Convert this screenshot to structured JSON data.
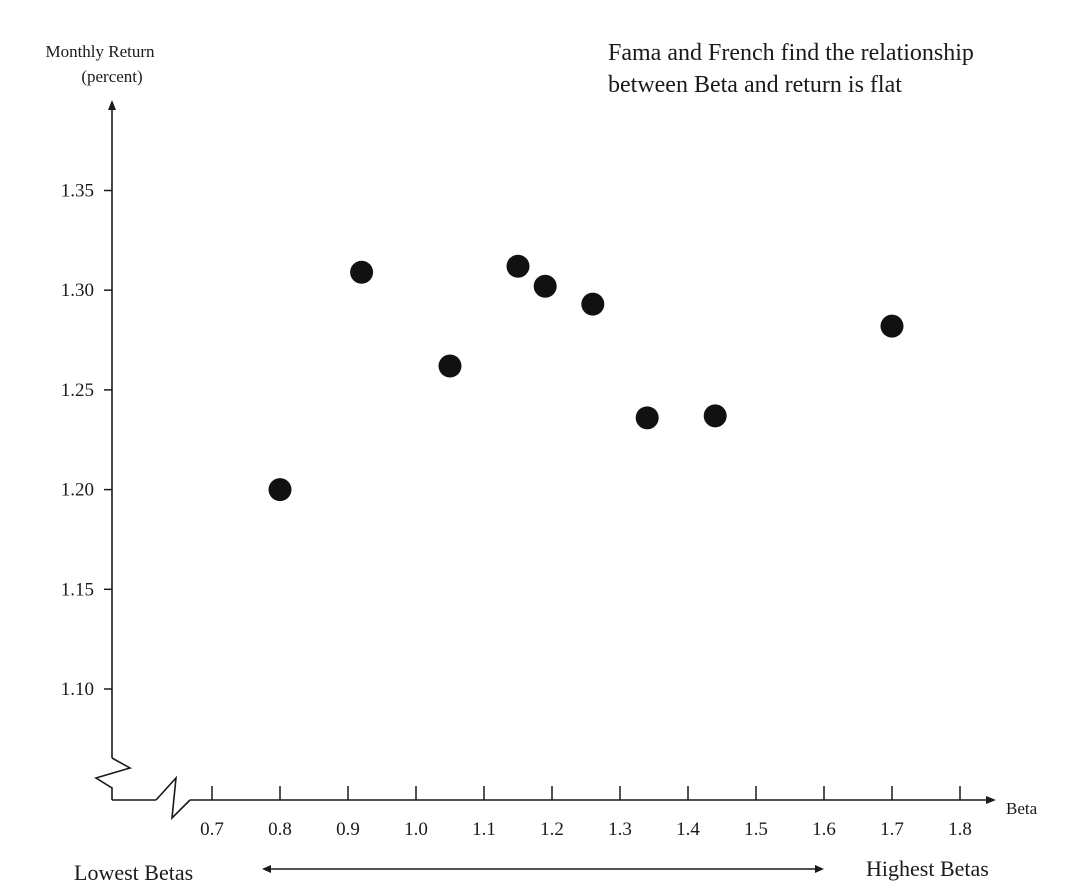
{
  "chart_data": {
    "type": "scatter",
    "title": "",
    "annotation_lines": [
      "Fama and French find the relationship",
      "between Beta and return is flat"
    ],
    "ylabel_lines": [
      "Monthly Return",
      "(percent)"
    ],
    "xlabel": "Beta",
    "x_ticks": [
      "0.7",
      "0.8",
      "0.9",
      "1.0",
      "1.1",
      "1.2",
      "1.3",
      "1.4",
      "1.5",
      "1.6",
      "1.7",
      "1.8"
    ],
    "y_ticks": [
      "1.10",
      "1.15",
      "1.20",
      "1.25",
      "1.30",
      "1.35"
    ],
    "xlim": [
      0.65,
      1.85
    ],
    "ylim": [
      1.06,
      1.39
    ],
    "axis_breaks": true,
    "grid": false,
    "points": [
      {
        "x": 0.8,
        "y": 1.2
      },
      {
        "x": 0.92,
        "y": 1.309
      },
      {
        "x": 1.05,
        "y": 1.262
      },
      {
        "x": 1.15,
        "y": 1.312
      },
      {
        "x": 1.19,
        "y": 1.302
      },
      {
        "x": 1.26,
        "y": 1.293
      },
      {
        "x": 1.34,
        "y": 1.236
      },
      {
        "x": 1.44,
        "y": 1.237
      },
      {
        "x": 1.7,
        "y": 1.282
      }
    ],
    "range_labels": {
      "low": "Lowest Betas",
      "high": "Highest Betas"
    },
    "colors": {
      "ink": "#1a1a1a",
      "point": "#111111",
      "background": "#ffffff"
    }
  }
}
